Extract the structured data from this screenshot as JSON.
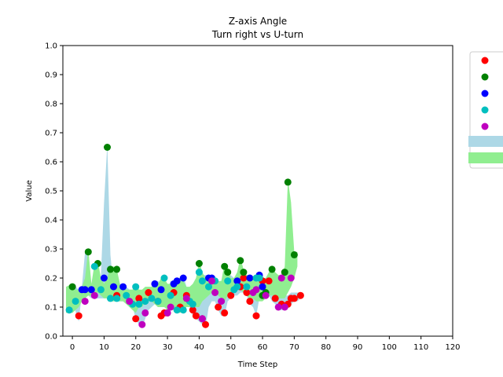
{
  "chart_data": {
    "type": "scatter",
    "title": "Z-axis Angle",
    "subtitle": "Turn right vs U-turn",
    "xlabel": "Time Step",
    "ylabel": "Value",
    "xlim": [
      -3,
      120
    ],
    "ylim": [
      0,
      1.0
    ],
    "xticks": [
      0,
      10,
      20,
      30,
      40,
      50,
      60,
      70,
      80,
      90,
      100,
      110,
      120
    ],
    "yticks": [
      0.0,
      0.1,
      0.2,
      0.3,
      0.4,
      0.5,
      0.6,
      0.7,
      0.8,
      0.9,
      1.0
    ],
    "xtick_labels": [
      "0",
      "10",
      "20",
      "30",
      "40",
      "50",
      "60",
      "70",
      "80",
      "90",
      "100",
      "110",
      "120"
    ],
    "ytick_labels": [
      "0.0",
      "0.1",
      "0.2",
      "0.3",
      "0.4",
      "0.5",
      "0.6",
      "0.7",
      "0.8",
      "0.9",
      "1.0"
    ],
    "grid": false,
    "legend": "right (cropped)",
    "series": [
      {
        "color": "#ff0000",
        "x": [
          2,
          14,
          20,
          21,
          24,
          27,
          28,
          29,
          30,
          32,
          34,
          36,
          38,
          39,
          41,
          42,
          46,
          48,
          50,
          53,
          54,
          55,
          56,
          58,
          60,
          62,
          64,
          66,
          68,
          69,
          70,
          72
        ],
        "y": [
          0.07,
          0.14,
          0.06,
          0.13,
          0.15,
          0.12,
          0.07,
          0.08,
          0.08,
          0.15,
          0.1,
          0.14,
          0.09,
          0.07,
          0.06,
          0.04,
          0.1,
          0.08,
          0.14,
          0.17,
          0.2,
          0.15,
          0.12,
          0.07,
          0.19,
          0.19,
          0.13,
          0.11,
          0.11,
          0.13,
          0.13,
          0.14
        ]
      },
      {
        "color": "#008000",
        "x": [
          0,
          5,
          8,
          11,
          12,
          14,
          40,
          48,
          49,
          53,
          54,
          60,
          61,
          63,
          67,
          68,
          70
        ],
        "y": [
          0.17,
          0.29,
          0.25,
          0.65,
          0.23,
          0.23,
          0.25,
          0.24,
          0.22,
          0.26,
          0.22,
          0.14,
          0.15,
          0.23,
          0.22,
          0.53,
          0.28
        ]
      },
      {
        "color": "#0000ff",
        "x": [
          3,
          4,
          6,
          10,
          13,
          16,
          26,
          28,
          32,
          33,
          35,
          43,
          44,
          52,
          56,
          59,
          60
        ],
        "y": [
          0.16,
          0.16,
          0.16,
          0.2,
          0.17,
          0.17,
          0.18,
          0.16,
          0.18,
          0.19,
          0.2,
          0.2,
          0.2,
          0.19,
          0.2,
          0.21,
          0.17
        ]
      },
      {
        "color": "#00bfbf",
        "x": [
          -1,
          1,
          7,
          9,
          12,
          14,
          17,
          19,
          20,
          21,
          23,
          25,
          27,
          29,
          31,
          33,
          35,
          37,
          38,
          40,
          41,
          43,
          45,
          49,
          51,
          52,
          55,
          58,
          59
        ],
        "y": [
          0.09,
          0.12,
          0.24,
          0.16,
          0.13,
          0.13,
          0.14,
          0.11,
          0.17,
          0.11,
          0.12,
          0.13,
          0.12,
          0.2,
          0.14,
          0.09,
          0.09,
          0.12,
          0.11,
          0.22,
          0.19,
          0.17,
          0.19,
          0.19,
          0.16,
          0.17,
          0.17,
          0.2,
          0.2
        ]
      },
      {
        "color": "#bf00bf",
        "x": [
          4,
          7,
          18,
          22,
          23,
          30,
          31,
          36,
          41,
          44,
          45,
          47,
          57,
          58,
          61,
          65,
          66,
          67,
          69
        ],
        "y": [
          0.12,
          0.14,
          0.12,
          0.04,
          0.08,
          0.08,
          0.1,
          0.13,
          0.06,
          0.19,
          0.15,
          0.12,
          0.15,
          0.16,
          0.14,
          0.1,
          0.2,
          0.1,
          0.2
        ]
      }
    ],
    "bands": [
      {
        "color": "#add8e6",
        "x": [
          0,
          2,
          3,
          4,
          5,
          6,
          7,
          8,
          9,
          10,
          11,
          12,
          13,
          14,
          15,
          16,
          17,
          18,
          19,
          20,
          21,
          22,
          23,
          24,
          25,
          26,
          27,
          28,
          29,
          30,
          31,
          32,
          33,
          34,
          35,
          36,
          37,
          38,
          39,
          40,
          41,
          42,
          43,
          44,
          45,
          46,
          47,
          48,
          49,
          50,
          51,
          52,
          53,
          54,
          55,
          56,
          57,
          58,
          59,
          60,
          61,
          62,
          63,
          64,
          65,
          66,
          67,
          68,
          69,
          70,
          71,
          72
        ],
        "upper": [
          0.18,
          0.16,
          0.17,
          0.29,
          0.3,
          0.17,
          0.16,
          0.17,
          0.21,
          0.46,
          0.66,
          0.28,
          0.16,
          0.16,
          0.16,
          0.17,
          0.17,
          0.16,
          0.16,
          0.16,
          0.14,
          0.13,
          0.14,
          0.16,
          0.17,
          0.19,
          0.19,
          0.18,
          0.17,
          0.16,
          0.19,
          0.19,
          0.2,
          0.2,
          0.21,
          0.17,
          0.15,
          0.14,
          0.14,
          0.2,
          0.21,
          0.21,
          0.21,
          0.21,
          0.2,
          0.17,
          0.16,
          0.2,
          0.21,
          0.21,
          0.2,
          0.2,
          0.2,
          0.2,
          0.21,
          0.21,
          0.2,
          0.21,
          0.22,
          0.21,
          0.19,
          0.2,
          0.21,
          0.21,
          0.2,
          0.16,
          0.14,
          0.14,
          0.15,
          0.15,
          0.15,
          0.15
        ],
        "lower": [
          0.12,
          0.05,
          0.15,
          0.14,
          0.14,
          0.13,
          0.13,
          0.13,
          0.13,
          0.13,
          0.13,
          0.12,
          0.12,
          0.12,
          0.12,
          0.12,
          0.11,
          0.11,
          0.1,
          0.06,
          0.04,
          0.03,
          0.06,
          0.09,
          0.1,
          0.11,
          0.1,
          0.1,
          0.11,
          0.11,
          0.12,
          0.13,
          0.12,
          0.11,
          0.11,
          0.11,
          0.1,
          0.07,
          0.06,
          0.05,
          0.04,
          0.03,
          0.1,
          0.12,
          0.12,
          0.09,
          0.07,
          0.07,
          0.12,
          0.13,
          0.14,
          0.14,
          0.15,
          0.15,
          0.14,
          0.11,
          0.1,
          0.07,
          0.13,
          0.14,
          0.14,
          0.14,
          0.12,
          0.11,
          0.09,
          0.09,
          0.09,
          0.11,
          0.11,
          0.12,
          0.12,
          0.13
        ]
      },
      {
        "color": "#90ee90",
        "x": [
          -2,
          0,
          1,
          2,
          3,
          4,
          5,
          6,
          7,
          8,
          9,
          10,
          11,
          12,
          13,
          14,
          15,
          16,
          17,
          18,
          19,
          20,
          21,
          22,
          23,
          24,
          25,
          26,
          27,
          28,
          29,
          30,
          31,
          32,
          33,
          34,
          35,
          36,
          37,
          38,
          39,
          40,
          41,
          42,
          43,
          44,
          45,
          46,
          47,
          48,
          49,
          50,
          51,
          52,
          53,
          54,
          55,
          56,
          57,
          58,
          59,
          60,
          61,
          62,
          63,
          64,
          65,
          66,
          67,
          68,
          69,
          70,
          71
        ],
        "upper": [
          0.17,
          0.18,
          0.16,
          0.16,
          0.17,
          0.2,
          0.3,
          0.18,
          0.25,
          0.26,
          0.2,
          0.18,
          0.2,
          0.24,
          0.24,
          0.23,
          0.18,
          0.17,
          0.16,
          0.16,
          0.16,
          0.18,
          0.16,
          0.16,
          0.17,
          0.17,
          0.17,
          0.18,
          0.18,
          0.2,
          0.2,
          0.18,
          0.18,
          0.18,
          0.2,
          0.2,
          0.19,
          0.17,
          0.17,
          0.18,
          0.2,
          0.26,
          0.22,
          0.2,
          0.2,
          0.2,
          0.2,
          0.19,
          0.19,
          0.25,
          0.24,
          0.2,
          0.2,
          0.22,
          0.27,
          0.23,
          0.21,
          0.21,
          0.2,
          0.21,
          0.21,
          0.2,
          0.2,
          0.22,
          0.24,
          0.22,
          0.21,
          0.21,
          0.24,
          0.54,
          0.46,
          0.29,
          0.29
        ],
        "lower": [
          0.08,
          0.08,
          0.09,
          0.1,
          0.12,
          0.13,
          0.14,
          0.14,
          0.15,
          0.15,
          0.14,
          0.13,
          0.13,
          0.12,
          0.12,
          0.12,
          0.12,
          0.12,
          0.11,
          0.1,
          0.09,
          0.08,
          0.1,
          0.1,
          0.12,
          0.12,
          0.12,
          0.11,
          0.1,
          0.1,
          0.1,
          0.09,
          0.09,
          0.09,
          0.08,
          0.08,
          0.09,
          0.1,
          0.1,
          0.1,
          0.1,
          0.1,
          0.12,
          0.13,
          0.14,
          0.15,
          0.15,
          0.14,
          0.13,
          0.12,
          0.14,
          0.15,
          0.16,
          0.16,
          0.16,
          0.15,
          0.14,
          0.13,
          0.13,
          0.12,
          0.12,
          0.12,
          0.13,
          0.14,
          0.14,
          0.14,
          0.13,
          0.13,
          0.13,
          0.15,
          0.17,
          0.2,
          0.24
        ]
      }
    ]
  }
}
